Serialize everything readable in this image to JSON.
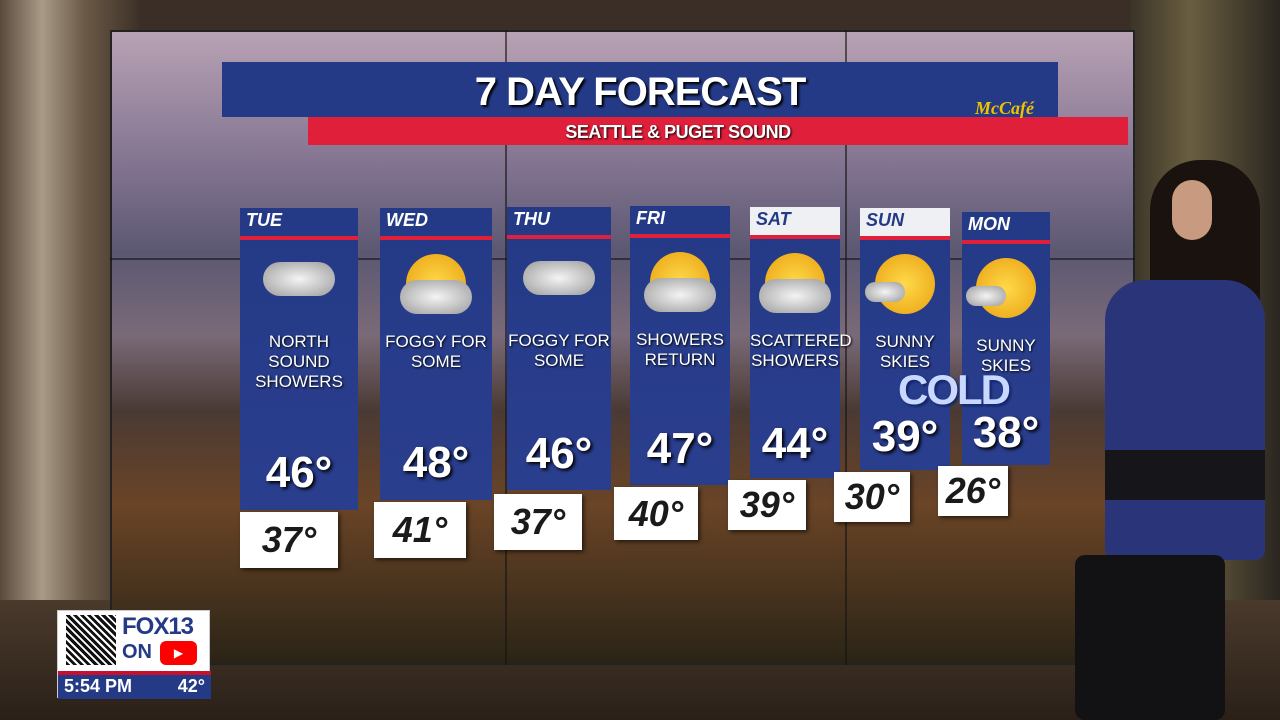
{
  "graphic": {
    "title": "7 DAY FORECAST",
    "subtitle": "SEATTLE & PUGET SOUND",
    "sponsor": "McCafé",
    "callout": "COLD"
  },
  "days": [
    {
      "day": "TUE",
      "condition": "NORTH SOUND SHOWERS",
      "icon": "cloudy-icon",
      "high": "46°",
      "low": "37°"
    },
    {
      "day": "WED",
      "condition": "FOGGY FOR SOME",
      "icon": "partly-cloudy-icon",
      "high": "48°",
      "low": "41°"
    },
    {
      "day": "THU",
      "condition": "FOGGY FOR SOME",
      "icon": "cloudy-icon",
      "high": "46°",
      "low": "37°"
    },
    {
      "day": "FRI",
      "condition": "SHOWERS RETURN",
      "icon": "sun-cloud-rain-icon",
      "high": "47°",
      "low": "40°"
    },
    {
      "day": "SAT",
      "condition": "SCATTERED SHOWERS",
      "icon": "sun-cloud-rain-icon",
      "high": "44°",
      "low": "39°"
    },
    {
      "day": "SUN",
      "condition": "SUNNY SKIES",
      "icon": "mostly-sunny-icon",
      "high": "39°",
      "low": "30°"
    },
    {
      "day": "MON",
      "condition": "SUNNY SKIES",
      "icon": "mostly-sunny-icon",
      "high": "38°",
      "low": "26°"
    }
  ],
  "station": {
    "brand": "FOX13",
    "on": "ON",
    "platform_icon": "youtube-icon",
    "time": "5:54 PM",
    "temp": "42°"
  },
  "colors": {
    "navy": "#243a86",
    "red": "#e0203a",
    "sun": "#f2c200"
  }
}
